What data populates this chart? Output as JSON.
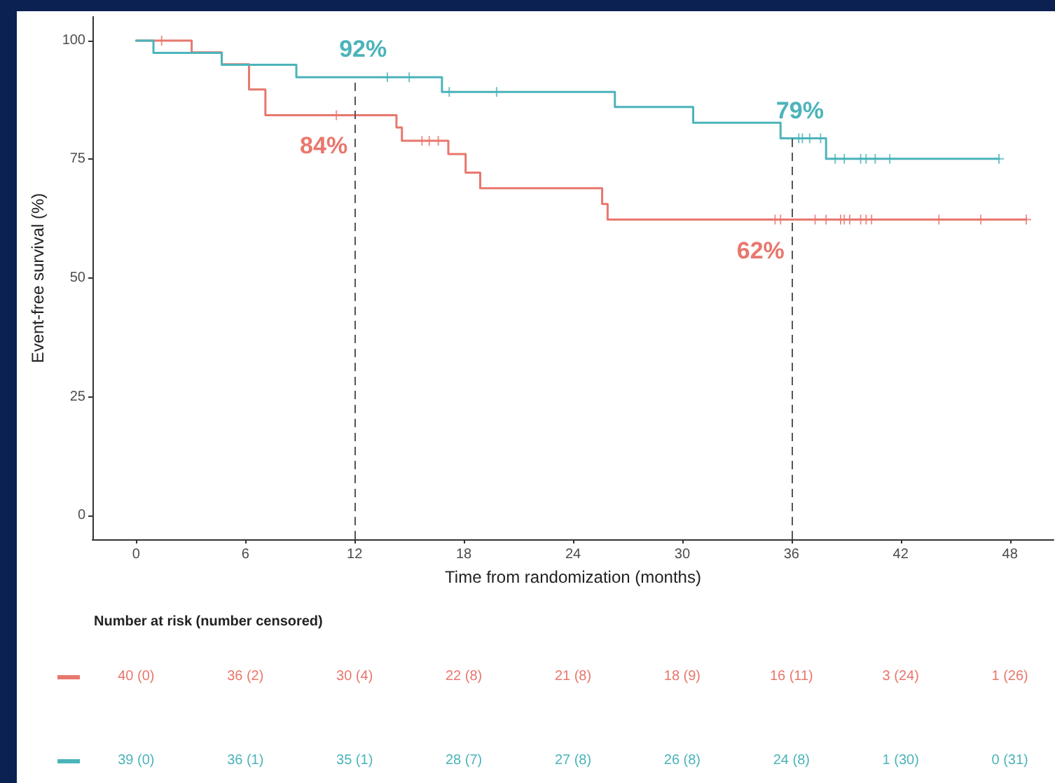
{
  "chart_data": [
    {
      "type": "step",
      "xlabel": "Time from randomization (months)",
      "ylabel": "Event-free survival (%)",
      "series": [
        {
          "color": "#e8776d",
          "x": [
            0,
            3.05,
            4.7,
            6.2,
            7.1,
            12,
            14.3,
            14.6,
            17.15,
            18.1,
            18.9,
            25.6,
            25.9,
            36,
            48.9
          ],
          "values": [
            100,
            97.5,
            95,
            89.7,
            84.3,
            84.3,
            81.7,
            78.9,
            76.1,
            72.2,
            68.9,
            65.6,
            62.3,
            62.3,
            62.3
          ],
          "value_labels": [
            null,
            null,
            null,
            null,
            null,
            "84%",
            null,
            null,
            null,
            null,
            null,
            null,
            null,
            "62%",
            null
          ]
        },
        {
          "color": "#4bb4ba",
          "x": [
            0,
            0.95,
            4.7,
            8.8,
            12,
            16.8,
            26.3,
            30.6,
            35.4,
            36,
            37.9,
            47.4
          ],
          "values": [
            100,
            97.4,
            94.9,
            92.3,
            92.3,
            89.2,
            86,
            82.7,
            79.4,
            79.4,
            75.1,
            75.1
          ],
          "value_labels": [
            null,
            null,
            null,
            null,
            "92%",
            null,
            null,
            null,
            null,
            "79%",
            null,
            null
          ]
        },
        {
          "type": "scatter",
          "marker": "cross",
          "color": "#e8776d",
          "x": [
            1.4,
            11,
            15.7,
            16.1,
            16.6,
            35.1,
            35.4,
            37.3,
            37.9,
            38.7,
            38.9,
            39.2,
            39.8,
            40.1,
            40.4,
            44.1,
            46.4,
            48.9
          ],
          "values": [
            100,
            84.3,
            78.9,
            78.9,
            78.9,
            62.3,
            62.3,
            62.3,
            62.3,
            62.3,
            62.3,
            62.3,
            62.3,
            62.3,
            62.3,
            62.3,
            62.3,
            62.3
          ]
        },
        {
          "type": "scatter",
          "marker": "cross",
          "color": "#4bb4ba",
          "x": [
            13.8,
            15,
            17.2,
            19.8,
            36.4,
            36.6,
            37,
            37.6,
            38.4,
            38.9,
            39.8,
            40.1,
            40.6,
            41.4,
            47.4
          ],
          "values": [
            92.3,
            92.3,
            89.2,
            89.2,
            79.4,
            79.4,
            79.4,
            79.4,
            75.1,
            75.1,
            75.1,
            75.1,
            75.1,
            75.1,
            75.1
          ]
        }
      ],
      "xlim": [
        -2.4,
        50.4
      ],
      "xticks": [
        0,
        6,
        12,
        18,
        24,
        30,
        36,
        42,
        48
      ],
      "ylim": [
        -5,
        105
      ],
      "yticks": [
        0,
        25,
        50,
        75,
        100
      ],
      "grid": false,
      "ref_lines": [
        {
          "axis": "x",
          "value": 12,
          "color": "#555555",
          "line_style": "dashed"
        },
        {
          "axis": "x",
          "value": 36,
          "color": "#555555",
          "line_style": "dashed"
        }
      ]
    },
    {
      "type": "other",
      "title": "Number at risk (number censored)",
      "annotations": [
        "40 (0)",
        "36 (2)",
        "30 (4)",
        "22 (8)",
        "21 (8)",
        "18 (9)",
        "16 (11)",
        "3 (24)",
        "1 (26)",
        "39 (0)",
        "36 (1)",
        "35 (1)",
        "28 (7)",
        "27 (8)",
        "26 (8)",
        "24 (8)",
        "1 (30)",
        "0 (31)"
      ]
    }
  ]
}
